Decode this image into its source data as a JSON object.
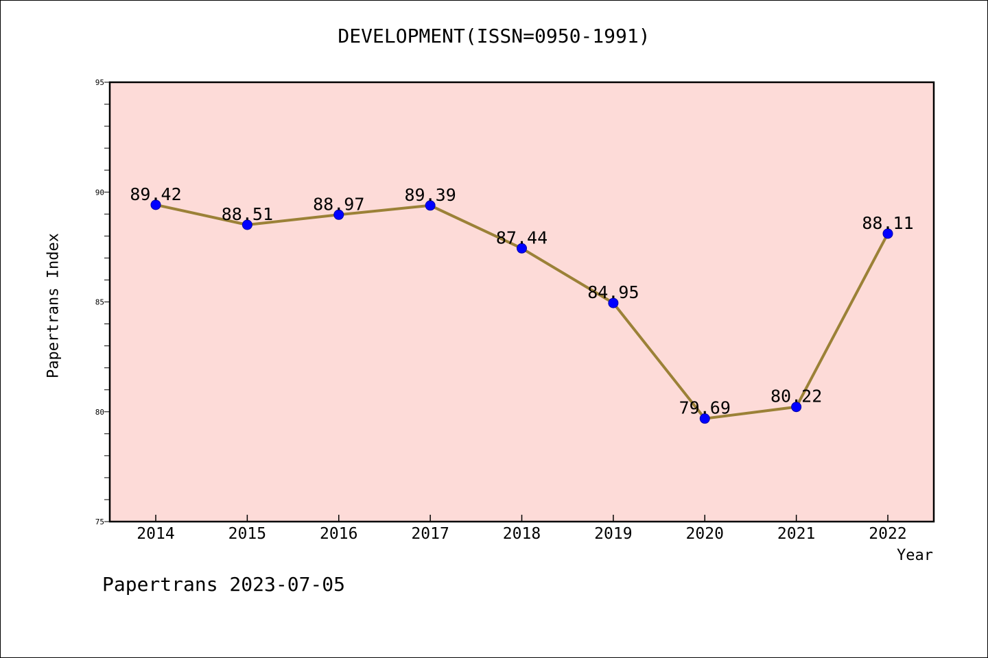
{
  "chart_data": {
    "type": "line",
    "title": "DEVELOPMENT(ISSN=0950-1991)",
    "xlabel": "Year",
    "ylabel": "Papertrans Index",
    "categories": [
      "2014",
      "2015",
      "2016",
      "2017",
      "2018",
      "2019",
      "2020",
      "2021",
      "2022"
    ],
    "series": [
      {
        "values": [
          89.42,
          88.51,
          88.97,
          89.39,
          87.44,
          84.95,
          79.69,
          80.22,
          88.11
        ]
      }
    ],
    "data_labels": [
      "89.42",
      "88.51",
      "88.97",
      "89.39",
      "87.44",
      "84.95",
      "79.69",
      "80.22",
      "88.11"
    ],
    "ylim": [
      75,
      95
    ],
    "yticks": [
      "75",
      "80",
      "85",
      "90",
      "95"
    ],
    "grid": false,
    "colors": {
      "plot_bg": "#fddbd8",
      "line": "#9b8137",
      "marker": "#0000ff"
    }
  },
  "footer": {
    "text": "Papertrans 2023-07-05"
  }
}
